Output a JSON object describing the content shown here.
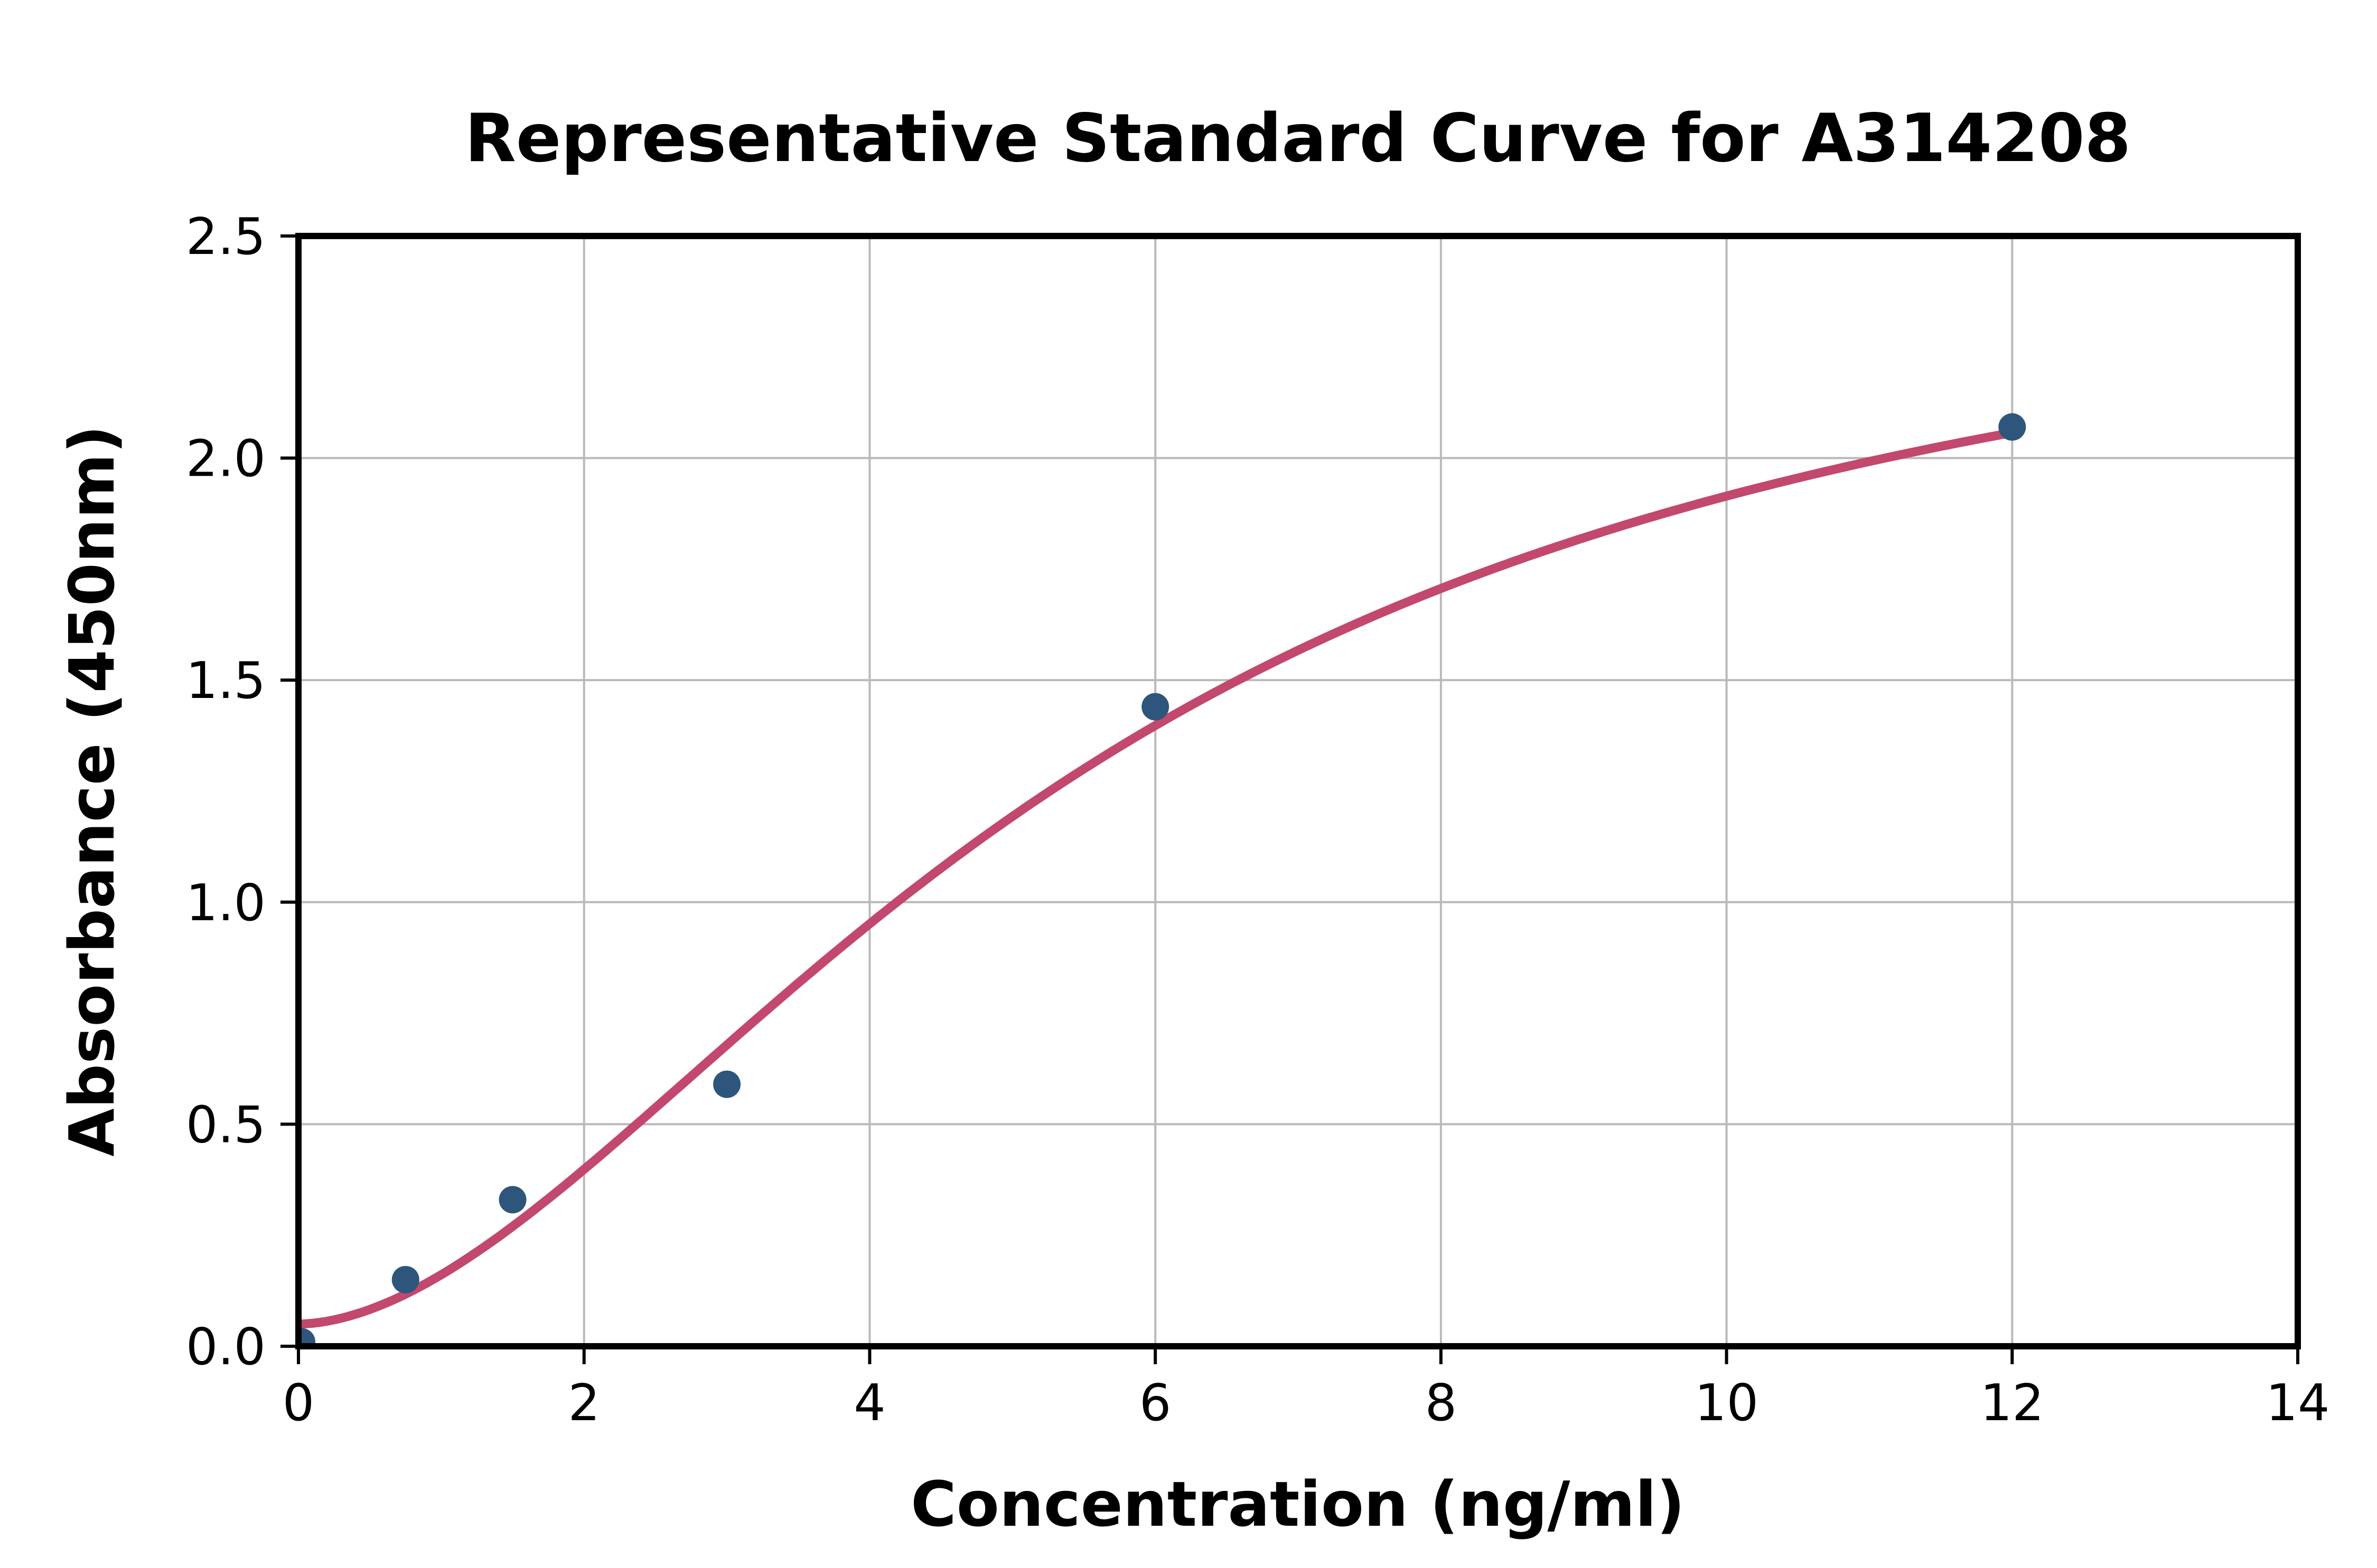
{
  "chart_data": {
    "type": "scatter",
    "title": "Representative Standard Curve for A314208",
    "xlabel": "Concentration (ng/ml)",
    "ylabel": "Absorbance (450nm)",
    "xlim": [
      0,
      14
    ],
    "ylim": [
      0,
      2.5
    ],
    "xticks": [
      "0",
      "2",
      "4",
      "6",
      "8",
      "10",
      "12",
      "14"
    ],
    "xtick_values": [
      0,
      2,
      4,
      6,
      8,
      10,
      12,
      14
    ],
    "yticks": [
      "0.0",
      "0.5",
      "1.0",
      "1.5",
      "2.0",
      "2.5"
    ],
    "ytick_values": [
      0,
      0.5,
      1.0,
      1.5,
      2.0,
      2.5
    ],
    "grid": true,
    "legend": "none",
    "points": {
      "x": [
        0,
        0.75,
        1.5,
        3,
        6,
        12
      ],
      "y": [
        0.01,
        0.15,
        0.33,
        0.59,
        1.44,
        2.07
      ]
    },
    "fit_curve": {
      "model": "4PL",
      "params": {
        "d": 0.05,
        "a": 2.55,
        "c": 5.5,
        "h": 1.8
      },
      "x_range": [
        0,
        12
      ]
    },
    "colors": {
      "points": "#2e567c",
      "curve": "#c2486e",
      "grid": "#b9b9b9",
      "axes": "#000000",
      "background": "#ffffff"
    }
  }
}
